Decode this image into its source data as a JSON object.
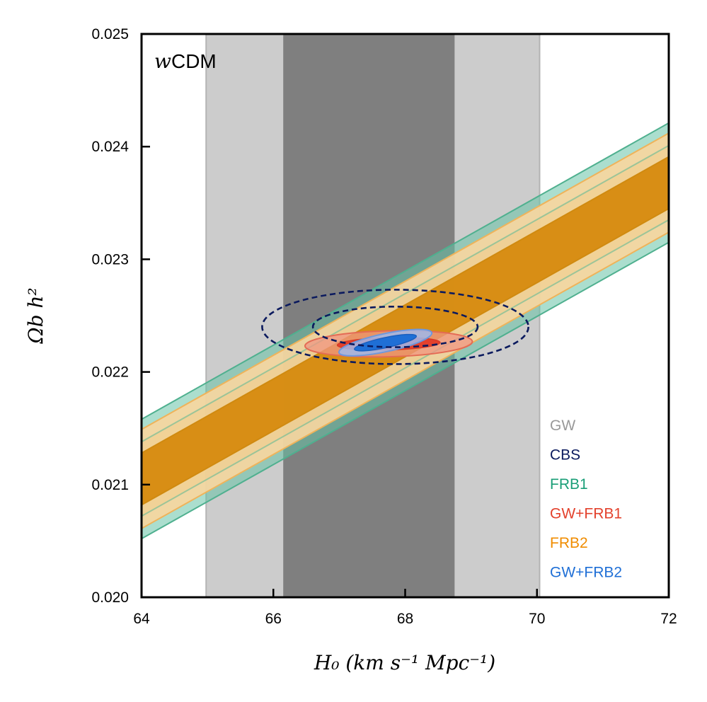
{
  "chart_data": {
    "type": "contour",
    "title": "",
    "model_label_prefix": "w",
    "model_label_suffix": "CDM",
    "xlabel": "H₀ (km s⁻¹ Mpc⁻¹)",
    "ylabel": "Ωb h²",
    "xlim": [
      64,
      72
    ],
    "ylim": [
      0.02,
      0.025
    ],
    "xticks": [
      64,
      66,
      68,
      70,
      72
    ],
    "xtick_labels": [
      "64",
      "66",
      "68",
      "70",
      "72"
    ],
    "yticks": [
      0.02,
      0.021,
      0.022,
      0.023,
      0.024,
      0.025
    ],
    "ytick_labels": [
      "0.020",
      "0.021",
      "0.022",
      "0.023",
      "0.024",
      "0.025"
    ],
    "legend_position": "bottom-right",
    "series": [
      {
        "name": "GW",
        "color": "#999999",
        "kind": "vertical_band",
        "sigma1": [
          66.15,
          68.75
        ],
        "sigma2": [
          64.98,
          70.04
        ]
      },
      {
        "name": "CBS",
        "color": "#0b1a5e",
        "kind": "dashed_ellipse",
        "center": [
          67.85,
          0.0224
        ],
        "sigma1_halfwidth": [
          1.25,
          0.00018
        ],
        "sigma2_halfwidth": [
          2.02,
          0.00033
        ]
      },
      {
        "name": "FRB1",
        "color": "#1a9e77",
        "kind": "diagonal_band",
        "center_line": [
          [
            64,
            0.02105
          ],
          [
            72,
            0.02368
          ]
        ],
        "sigma1_halfwidth": 0.00033,
        "sigma2_halfwidth": 0.00053
      },
      {
        "name": "GW+FRB1",
        "color": "#e3412c",
        "kind": "filled_ellipse",
        "center": [
          67.75,
          0.02225
        ],
        "angle_deg": 1.5,
        "sigma1_halfwidth": [
          0.78,
          5.5e-05
        ],
        "sigma2_halfwidth": [
          1.27,
          0.000115
        ]
      },
      {
        "name": "FRB2",
        "color": "#f08c00",
        "kind": "diagonal_band",
        "center_line": [
          [
            64,
            0.02105
          ],
          [
            72,
            0.02368
          ]
        ],
        "sigma1_halfwidth": 0.00023,
        "sigma2_halfwidth": 0.00044
      },
      {
        "name": "GW+FRB2",
        "color": "#1f6fd6",
        "kind": "filled_ellipse",
        "center": [
          67.7,
          0.02226
        ],
        "angle_deg": 12,
        "sigma1_halfwidth": [
          0.48,
          4.5e-05
        ],
        "sigma2_halfwidth": [
          0.72,
          8e-05
        ]
      }
    ]
  }
}
